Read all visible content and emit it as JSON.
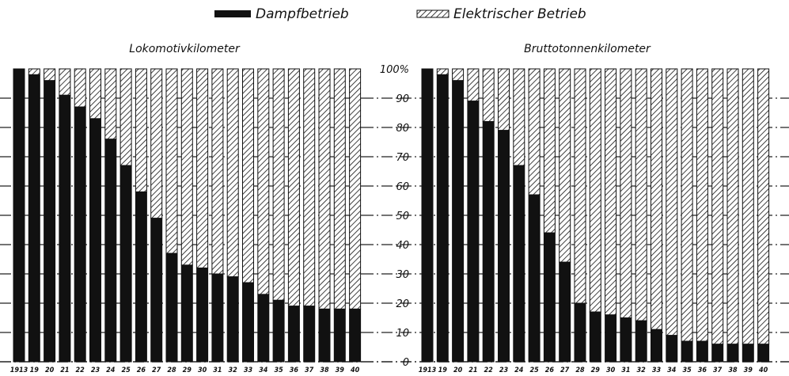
{
  "legend": {
    "steam_label": "Dampfbetrieb",
    "electric_label": "Elektrischer Betrieb"
  },
  "colors": {
    "steam": "#111111",
    "electric_hatch": "#111111",
    "background": "#ffffff"
  },
  "chart_data": [
    {
      "type": "bar",
      "stacked": true,
      "title": "Lokomotivkilometer",
      "categories": [
        "1913",
        "19",
        "20",
        "21",
        "22",
        "23",
        "24",
        "25",
        "26",
        "27",
        "28",
        "29",
        "30",
        "31",
        "32",
        "33",
        "34",
        "35",
        "36",
        "37",
        "38",
        "39",
        "40"
      ],
      "series": [
        {
          "name": "Dampfbetrieb",
          "values": [
            100,
            98,
            96,
            91,
            87,
            83,
            76,
            67,
            58,
            49,
            37,
            33,
            32,
            30,
            29,
            27,
            23,
            21,
            19,
            19,
            18,
            18,
            18
          ]
        },
        {
          "name": "Elektrischer Betrieb",
          "values": [
            0,
            2,
            4,
            9,
            13,
            17,
            24,
            33,
            42,
            51,
            63,
            67,
            68,
            70,
            71,
            73,
            77,
            79,
            81,
            81,
            82,
            82,
            82
          ]
        }
      ],
      "ylim": [
        0,
        100
      ],
      "yticks": [
        "10",
        "20",
        "30",
        "40",
        "50",
        "60",
        "70",
        "80",
        "90",
        "100%"
      ],
      "grid": true
    },
    {
      "type": "bar",
      "stacked": true,
      "title": "Bruttotonnenkilometer",
      "categories": [
        "1913",
        "19",
        "20",
        "21",
        "22",
        "23",
        "24",
        "25",
        "26",
        "27",
        "28",
        "29",
        "30",
        "31",
        "32",
        "33",
        "34",
        "35",
        "36",
        "37",
        "38",
        "39",
        "40"
      ],
      "series": [
        {
          "name": "Dampfbetrieb",
          "values": [
            100,
            98,
            96,
            89,
            82,
            79,
            67,
            57,
            44,
            34,
            20,
            17,
            16,
            15,
            14,
            11,
            9,
            7,
            7,
            6,
            6,
            6,
            6
          ]
        },
        {
          "name": "Elektrischer Betrieb",
          "values": [
            0,
            2,
            4,
            11,
            18,
            21,
            33,
            43,
            56,
            66,
            80,
            83,
            84,
            85,
            86,
            89,
            91,
            93,
            93,
            94,
            94,
            94,
            94
          ]
        }
      ],
      "ylim": [
        0,
        100
      ],
      "yticks": [
        "0",
        "10",
        "20",
        "30",
        "40",
        "50",
        "60",
        "70",
        "80",
        "90",
        "100%"
      ],
      "grid": true
    }
  ]
}
